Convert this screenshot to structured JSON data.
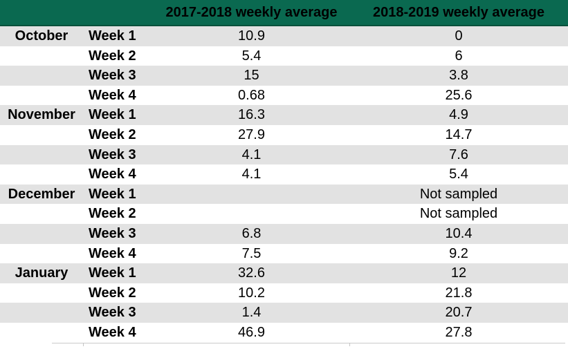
{
  "table": {
    "columns": {
      "month": "",
      "week": "",
      "col_2017": "2017-2018 weekly average",
      "col_2018": "2018-2019 weekly average"
    },
    "rows": [
      {
        "month": "October",
        "week": "Week 1",
        "v2017": "10.9",
        "v2018": "0"
      },
      {
        "month": "",
        "week": "Week 2",
        "v2017": "5.4",
        "v2018": "6"
      },
      {
        "month": "",
        "week": "Week 3",
        "v2017": "15",
        "v2018": "3.8"
      },
      {
        "month": "",
        "week": "Week 4",
        "v2017": "0.68",
        "v2018": "25.6"
      },
      {
        "month": "November",
        "week": "Week 1",
        "v2017": "16.3",
        "v2018": "4.9"
      },
      {
        "month": "",
        "week": "Week 2",
        "v2017": "27.9",
        "v2018": "14.7"
      },
      {
        "month": "",
        "week": "Week 3",
        "v2017": "4.1",
        "v2018": "7.6"
      },
      {
        "month": "",
        "week": "Week 4",
        "v2017": "4.1",
        "v2018": "5.4"
      },
      {
        "month": "December",
        "week": "Week 1",
        "v2017": "",
        "v2018": "Not sampled"
      },
      {
        "month": "",
        "week": "Week 2",
        "v2017": "",
        "v2018": "Not sampled"
      },
      {
        "month": "",
        "week": "Week 3",
        "v2017": "6.8",
        "v2018": "10.4"
      },
      {
        "month": "",
        "week": "Week 4",
        "v2017": "7.5",
        "v2018": "9.2"
      },
      {
        "month": "January",
        "week": "Week 1",
        "v2017": "32.6",
        "v2018": "12"
      },
      {
        "month": "",
        "week": "Week 2",
        "v2017": "10.2",
        "v2018": "21.8"
      },
      {
        "month": "",
        "week": "Week 3",
        "v2017": "1.4",
        "v2018": "20.7"
      },
      {
        "month": "",
        "week": "Week 4",
        "v2017": "46.9",
        "v2018": "27.8"
      }
    ]
  },
  "chart_data": {
    "type": "table",
    "title": "",
    "row_groups": [
      "October",
      "November",
      "December",
      "January"
    ],
    "categories": [
      "October Week 1",
      "October Week 2",
      "October Week 3",
      "October Week 4",
      "November Week 1",
      "November Week 2",
      "November Week 3",
      "November Week 4",
      "December Week 1",
      "December Week 2",
      "December Week 3",
      "December Week 4",
      "January Week 1",
      "January Week 2",
      "January Week 3",
      "January Week 4"
    ],
    "series": [
      {
        "name": "2017-2018 weekly average",
        "values": [
          10.9,
          5.4,
          15,
          0.68,
          16.3,
          27.9,
          4.1,
          4.1,
          null,
          null,
          6.8,
          7.5,
          32.6,
          10.2,
          1.4,
          46.9
        ]
      },
      {
        "name": "2018-2019 weekly average",
        "values": [
          0,
          6,
          3.8,
          25.6,
          4.9,
          14.7,
          7.6,
          5.4,
          "Not sampled",
          "Not sampled",
          10.4,
          9.2,
          12,
          21.8,
          20.7,
          27.8
        ]
      }
    ],
    "layout": {
      "stripe_pattern": "odd-rows-gray",
      "header_position": "top"
    }
  },
  "colors": {
    "header_bg": "#0a6950",
    "header_border": "#07503b",
    "row_stripe": "#e2e2e2",
    "row_plain": "#ffffff",
    "text": "#000000"
  }
}
